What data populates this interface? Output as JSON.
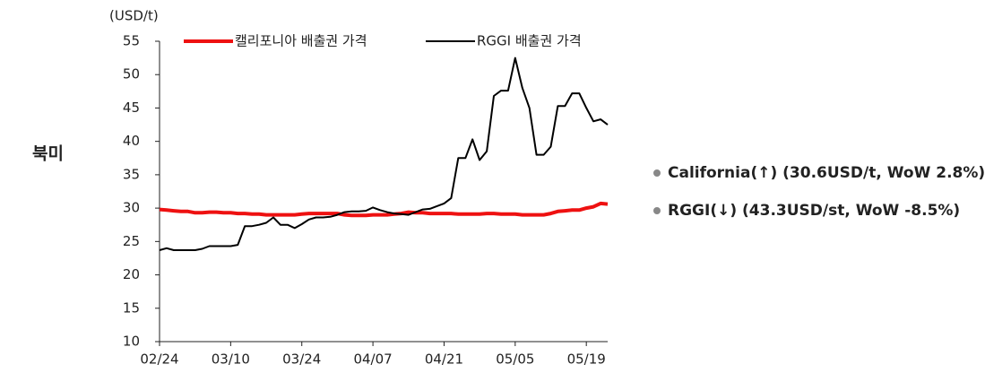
{
  "side_label": "북미",
  "notes": [
    "California(↑) (30.6USD/t, WoW 2.8%)",
    "RGGI(↓) (43.3USD/st, WoW -8.5%)"
  ],
  "chart_data": {
    "type": "line",
    "y_label": "(USD/t)",
    "categories": [
      "02/24",
      null,
      null,
      null,
      null,
      null,
      null,
      null,
      null,
      null,
      "03/10",
      null,
      null,
      null,
      null,
      null,
      null,
      null,
      null,
      null,
      "03/24",
      null,
      null,
      null,
      null,
      null,
      null,
      null,
      null,
      null,
      "04/07",
      null,
      null,
      null,
      null,
      null,
      null,
      null,
      null,
      null,
      "04/21",
      null,
      null,
      null,
      null,
      null,
      null,
      null,
      null,
      null,
      "05/05",
      null,
      null,
      null,
      null,
      null,
      null,
      null,
      null,
      null,
      "05/19",
      null,
      null,
      null
    ],
    "ylim": [
      10,
      55
    ],
    "yticks": [
      10,
      15,
      20,
      25,
      30,
      35,
      40,
      45,
      50,
      55
    ],
    "grid": false,
    "legend": "top",
    "series": [
      {
        "name": "캘리포니아 배출권 가격",
        "color": "#ee1111",
        "width": 4,
        "values": [
          29.8,
          29.7,
          29.6,
          29.5,
          29.5,
          29.3,
          29.3,
          29.4,
          29.4,
          29.3,
          29.3,
          29.2,
          29.2,
          29.1,
          29.1,
          29.0,
          29.0,
          29.0,
          29.0,
          29.0,
          29.1,
          29.2,
          29.2,
          29.2,
          29.2,
          29.2,
          29.0,
          28.9,
          28.9,
          28.9,
          29.0,
          29.0,
          29.0,
          29.1,
          29.2,
          29.4,
          29.3,
          29.3,
          29.2,
          29.2,
          29.2,
          29.2,
          29.1,
          29.1,
          29.1,
          29.1,
          29.2,
          29.2,
          29.1,
          29.1,
          29.1,
          29.0,
          29.0,
          29.0,
          29.0,
          29.2,
          29.5,
          29.6,
          29.7,
          29.7,
          30.0,
          30.2,
          30.7,
          30.6
        ]
      },
      {
        "name": "RGGI 배출권 가격",
        "color": "#000000",
        "width": 2,
        "values": [
          23.7,
          24.0,
          23.7,
          23.7,
          23.7,
          23.7,
          23.9,
          24.3,
          24.3,
          24.3,
          24.3,
          24.5,
          27.3,
          27.3,
          27.5,
          27.8,
          28.6,
          27.5,
          27.5,
          27.0,
          27.6,
          28.3,
          28.6,
          28.6,
          28.7,
          29.0,
          29.4,
          29.5,
          29.5,
          29.6,
          30.1,
          29.7,
          29.4,
          29.2,
          29.1,
          29.0,
          29.4,
          29.8,
          29.9,
          30.3,
          30.7,
          31.5,
          37.5,
          37.5,
          40.3,
          37.2,
          38.5,
          46.8,
          47.6,
          47.6,
          52.5,
          48.0,
          45.0,
          38.0,
          38.0,
          39.2,
          45.3,
          45.3,
          47.2,
          47.2,
          45.0,
          43.0,
          43.3,
          42.5
        ]
      }
    ]
  }
}
